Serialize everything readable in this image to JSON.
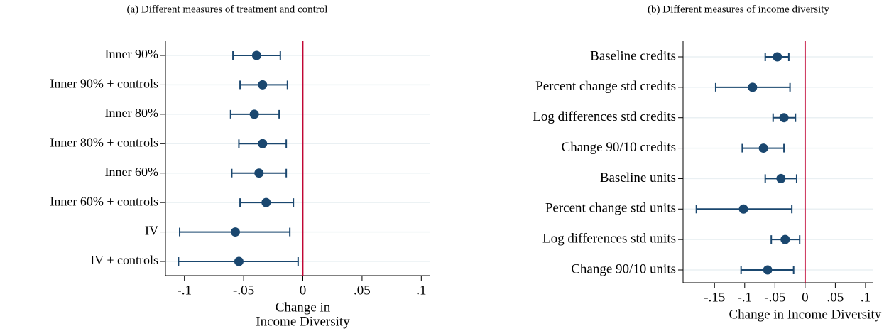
{
  "chart_data": [
    {
      "type": "coefplot",
      "title": "(a) Different measures of treatment and control",
      "categories": [
        "Inner 90%",
        "Inner 90% + controls",
        "Inner 80%",
        "Inner 80% + controls",
        "Inner 60%",
        "Inner 60% + controls",
        "IV",
        "IV + controls"
      ],
      "values": [
        -0.039,
        -0.034,
        -0.041,
        -0.034,
        -0.037,
        -0.031,
        -0.057,
        -0.054
      ],
      "ci_low": [
        -0.059,
        -0.053,
        -0.061,
        -0.054,
        -0.06,
        -0.053,
        -0.104,
        -0.105
      ],
      "ci_high": [
        -0.019,
        -0.013,
        -0.02,
        -0.014,
        -0.014,
        -0.008,
        -0.011,
        -0.004
      ],
      "x_label": [
        "Change in",
        "Income Diversity"
      ],
      "xlim": [
        -0.116,
        0.107
      ],
      "xticks": [
        {
          "value": -0.1,
          "label": "-.1"
        },
        {
          "value": -0.05,
          "label": "-.05"
        },
        0,
        {
          "value": 0.05,
          "label": ".05"
        },
        {
          "value": 0.1,
          "label": ".1"
        }
      ],
      "reference_line": 0,
      "color": "#1a476f",
      "reference_color": "#c10534",
      "grid": true
    },
    {
      "type": "coefplot",
      "title": "(b) Different measures of income diversity",
      "categories": [
        "Baseline credits",
        "Percent change std credits",
        "Log differences std credits",
        "Change 90/10 credits",
        "Baseline units",
        "Percent change std units",
        "Log differences std units",
        "Change 90/10 units"
      ],
      "values": [
        -0.046,
        -0.087,
        -0.035,
        -0.069,
        -0.04,
        -0.102,
        -0.033,
        -0.062
      ],
      "ci_low": [
        -0.066,
        -0.148,
        -0.053,
        -0.104,
        -0.066,
        -0.18,
        -0.056,
        -0.106
      ],
      "ci_high": [
        -0.027,
        -0.025,
        -0.016,
        -0.035,
        -0.014,
        -0.022,
        -0.009,
        -0.019
      ],
      "x_label": [
        "Change in Income Diversity"
      ],
      "xlim": [
        -0.202,
        0.113
      ],
      "xticks": [
        {
          "value": -0.15,
          "label": "-.15"
        },
        {
          "value": -0.1,
          "label": "-.1"
        },
        {
          "value": -0.05,
          "label": "-.05"
        },
        0,
        {
          "value": 0.05,
          "label": ".05"
        },
        {
          "value": 0.1,
          "label": ".1"
        }
      ],
      "reference_line": 0,
      "color": "#1a476f",
      "reference_color": "#c10534",
      "grid": true
    }
  ]
}
